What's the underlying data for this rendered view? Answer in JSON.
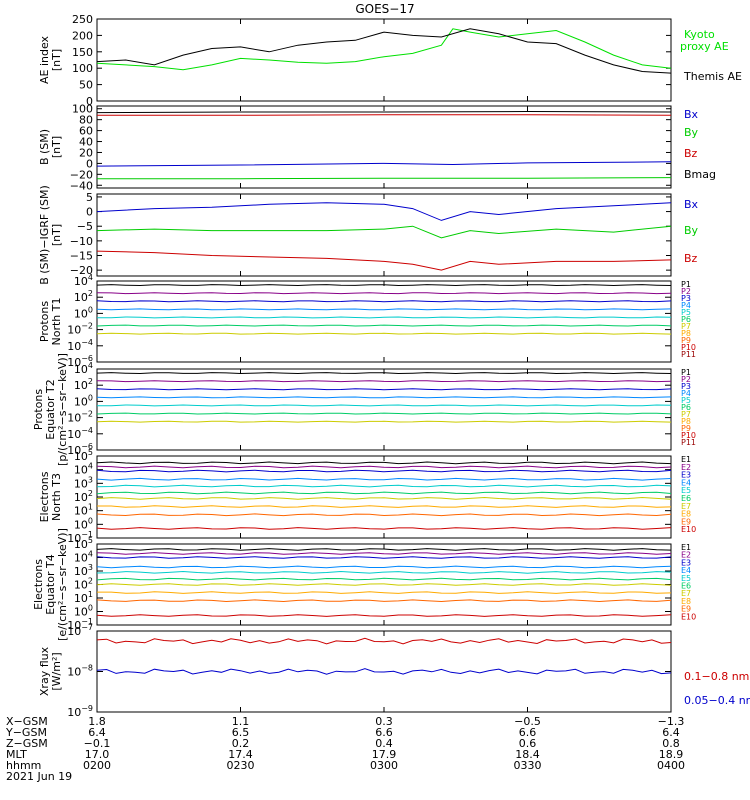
{
  "title": "GOES−17",
  "chart_data": [
    {
      "type": "line",
      "title": "AE index",
      "ylabel_lines": [
        "AE index",
        "[nT]"
      ],
      "ylim": [
        0,
        250
      ],
      "yscale": "linear",
      "yticks": [
        0,
        50,
        100,
        150,
        200,
        250
      ],
      "series": [
        {
          "name": "Kyoto proxy AE",
          "legend_lines": [
            "Kyoto",
            "proxy AE"
          ],
          "color": "#00e000",
          "x": [
            0,
            0.05,
            0.1,
            0.15,
            0.2,
            0.25,
            0.3,
            0.35,
            0.4,
            0.45,
            0.5,
            0.55,
            0.6,
            0.62,
            0.65,
            0.7,
            0.75,
            0.8,
            0.85,
            0.9,
            0.95,
            1.0
          ],
          "y": [
            115,
            110,
            105,
            95,
            110,
            130,
            125,
            118,
            115,
            120,
            135,
            145,
            170,
            220,
            210,
            195,
            205,
            215,
            180,
            140,
            110,
            100
          ]
        },
        {
          "name": "Themis AE",
          "legend_lines": [
            "Themis AE"
          ],
          "color": "#000000",
          "x": [
            0,
            0.05,
            0.1,
            0.15,
            0.2,
            0.25,
            0.3,
            0.35,
            0.4,
            0.45,
            0.5,
            0.55,
            0.6,
            0.65,
            0.7,
            0.75,
            0.8,
            0.85,
            0.9,
            0.95,
            1.0
          ],
          "y": [
            120,
            125,
            110,
            140,
            160,
            165,
            150,
            170,
            180,
            185,
            210,
            200,
            195,
            220,
            205,
            180,
            175,
            140,
            110,
            90,
            85
          ]
        }
      ]
    },
    {
      "type": "line",
      "title": "B (SM)",
      "ylabel_lines": [
        "B (SM)",
        "[nT]"
      ],
      "ylim": [
        -45,
        105
      ],
      "yscale": "linear",
      "yticks": [
        -40,
        -20,
        0,
        20,
        40,
        60,
        80,
        100
      ],
      "series": [
        {
          "name": "Bx",
          "color": "#0000cc",
          "x": [
            0,
            0.25,
            0.5,
            0.62,
            0.75,
            1.0
          ],
          "y": [
            -5,
            -3,
            0,
            -2,
            1,
            3
          ]
        },
        {
          "name": "By",
          "color": "#00cc00",
          "x": [
            0,
            0.25,
            0.5,
            0.75,
            1.0
          ],
          "y": [
            -28,
            -28,
            -27,
            -27,
            -26
          ]
        },
        {
          "name": "Bz",
          "color": "#cc0000",
          "x": [
            0,
            0.25,
            0.5,
            0.75,
            1.0
          ],
          "y": [
            88,
            88,
            89,
            89,
            88
          ]
        },
        {
          "name": "Bmag",
          "color": "#000000",
          "x": [
            0,
            0.25,
            0.5,
            0.75,
            1.0
          ],
          "y": [
            93,
            94,
            94,
            95,
            94
          ]
        }
      ]
    },
    {
      "type": "line",
      "title": "B (SM)-IGRF (SM)",
      "ylabel_lines": [
        "B (SM)−IGRF (SM)",
        "[nT]"
      ],
      "ylim": [
        -22,
        6
      ],
      "yscale": "linear",
      "yticks": [
        -20,
        -15,
        -10,
        -5,
        0,
        5
      ],
      "series": [
        {
          "name": "Bx",
          "color": "#0000cc",
          "x": [
            0,
            0.1,
            0.2,
            0.3,
            0.4,
            0.5,
            0.55,
            0.6,
            0.65,
            0.7,
            0.8,
            0.9,
            1.0
          ],
          "y": [
            0,
            1,
            1.5,
            2.5,
            3,
            2.5,
            1,
            -3,
            0,
            -1,
            1,
            2,
            3
          ]
        },
        {
          "name": "By",
          "color": "#00cc00",
          "x": [
            0,
            0.1,
            0.2,
            0.3,
            0.4,
            0.5,
            0.55,
            0.6,
            0.65,
            0.7,
            0.8,
            0.9,
            1.0
          ],
          "y": [
            -6.5,
            -6,
            -6.5,
            -6.5,
            -6.5,
            -6,
            -5,
            -9,
            -6.5,
            -7.5,
            -6,
            -7,
            -5
          ]
        },
        {
          "name": "Bz",
          "color": "#cc0000",
          "x": [
            0,
            0.1,
            0.2,
            0.3,
            0.4,
            0.5,
            0.55,
            0.6,
            0.65,
            0.7,
            0.8,
            0.9,
            1.0
          ],
          "y": [
            -13.5,
            -14,
            -15,
            -15.5,
            -16,
            -17,
            -18,
            -20,
            -17,
            -18,
            -17,
            -17,
            -16.5
          ]
        }
      ]
    },
    {
      "type": "line",
      "title": "Protons North T1",
      "ylabel_lines": [
        "Protons",
        "North T1"
      ],
      "ylim_exp": [
        -6,
        4
      ],
      "yscale": "log",
      "ytick_exps": [
        -6,
        -4,
        -2,
        0,
        2,
        4
      ],
      "legend": [
        "P1",
        "P2",
        "P3",
        "P4",
        "P5",
        "P6",
        "P7",
        "P8",
        "P9",
        "P10",
        "P11"
      ],
      "legend_colors": [
        "#000000",
        "#880088",
        "#0000cc",
        "#0088ff",
        "#00cccc",
        "#00cc66",
        "#cccc00",
        "#ffaa00",
        "#ff6600",
        "#cc0000",
        "#990000"
      ],
      "series_levels_exp": [
        3.5,
        2.5,
        1.5,
        0.5,
        -0.5,
        -1.5,
        -2.5
      ]
    },
    {
      "type": "line",
      "title": "Protons Equator T2",
      "ylabel_lines": [
        "Protons",
        "Equator T2",
        "[p/(cm²−s−sr−keV)]"
      ],
      "ylim_exp": [
        -6,
        4
      ],
      "yscale": "log",
      "ytick_exps": [
        -6,
        -4,
        -2,
        0,
        2,
        4
      ],
      "legend": [
        "P1",
        "P2",
        "P3",
        "P4",
        "P5",
        "P6",
        "P7",
        "P8",
        "P9",
        "P10",
        "P11"
      ],
      "legend_colors": [
        "#000000",
        "#880088",
        "#0000cc",
        "#0088ff",
        "#00cccc",
        "#00cc66",
        "#cccc00",
        "#ffaa00",
        "#ff6600",
        "#cc0000",
        "#990000"
      ],
      "series_levels_exp": [
        3.5,
        2.5,
        1.5,
        0.5,
        -0.5,
        -1.5,
        -2.5
      ]
    },
    {
      "type": "line",
      "title": "Electrons North T3",
      "ylabel_lines": [
        "Electrons",
        "North T3"
      ],
      "ylim_exp": [
        -1,
        5
      ],
      "yscale": "log",
      "ytick_exps": [
        -1,
        0,
        1,
        2,
        3,
        4,
        5
      ],
      "legend": [
        "E1",
        "E2",
        "E3",
        "E4",
        "E5",
        "E6",
        "E7",
        "E8",
        "E9",
        "E10"
      ],
      "legend_colors": [
        "#000000",
        "#880088",
        "#0000cc",
        "#0088ff",
        "#00cccc",
        "#00cc66",
        "#cccc00",
        "#ffaa00",
        "#ff6600",
        "#cc0000"
      ],
      "series_levels_exp": [
        4.5,
        4.2,
        3.9,
        3.3,
        2.8,
        2.3,
        1.9,
        1.3,
        0.7,
        -0.3
      ]
    },
    {
      "type": "line",
      "title": "Electrons Equator T4",
      "ylabel_lines": [
        "Electrons",
        "Equator T4",
        "[e/(cm²−s−sr−keV)]"
      ],
      "ylim_exp": [
        -1,
        5
      ],
      "yscale": "log",
      "ytick_exps": [
        -1,
        0,
        1,
        2,
        3,
        4,
        5
      ],
      "legend": [
        "E1",
        "E2",
        "E3",
        "E4",
        "E5",
        "E6",
        "E7",
        "E8",
        "E9",
        "E10"
      ],
      "legend_colors": [
        "#000000",
        "#880088",
        "#0000cc",
        "#0088ff",
        "#00cccc",
        "#00cc66",
        "#cccc00",
        "#ffaa00",
        "#ff6600",
        "#cc0000"
      ],
      "series_levels_exp": [
        4.6,
        4.3,
        4.0,
        3.3,
        2.9,
        2.4,
        2.0,
        1.4,
        0.8,
        -0.3
      ]
    },
    {
      "type": "line",
      "title": "Xray flux",
      "ylabel_lines": [
        "Xray flux",
        "[W/m²]"
      ],
      "ylim_exp": [
        -9,
        -7
      ],
      "yscale": "log",
      "ytick_exps": [
        -9,
        -8,
        -7
      ],
      "series": [
        {
          "name": "0.1−0.8 nm",
          "color": "#cc0000",
          "level_exp": -7.25
        },
        {
          "name": "0.05−0.4 nm",
          "color": "#0000cc",
          "level_exp": -8.0
        }
      ]
    }
  ],
  "orbit_table": {
    "row_labels": [
      "X−GSM",
      "Y−GSM",
      "Z−GSM",
      "MLT",
      "hhmm"
    ],
    "columns": [
      {
        "values": [
          "1.8",
          "6.4",
          "−0.1",
          "17.0",
          "0200"
        ]
      },
      {
        "values": [
          "1.1",
          "6.5",
          "0.2",
          "17.4",
          "0230"
        ]
      },
      {
        "values": [
          "0.3",
          "6.6",
          "0.4",
          "17.9",
          "0300"
        ]
      },
      {
        "values": [
          "−0.5",
          "6.6",
          "0.6",
          "18.4",
          "0330"
        ]
      },
      {
        "values": [
          "−1.3",
          "6.4",
          "0.8",
          "18.9",
          "0400"
        ]
      }
    ],
    "date": "2021 Jun 19"
  }
}
